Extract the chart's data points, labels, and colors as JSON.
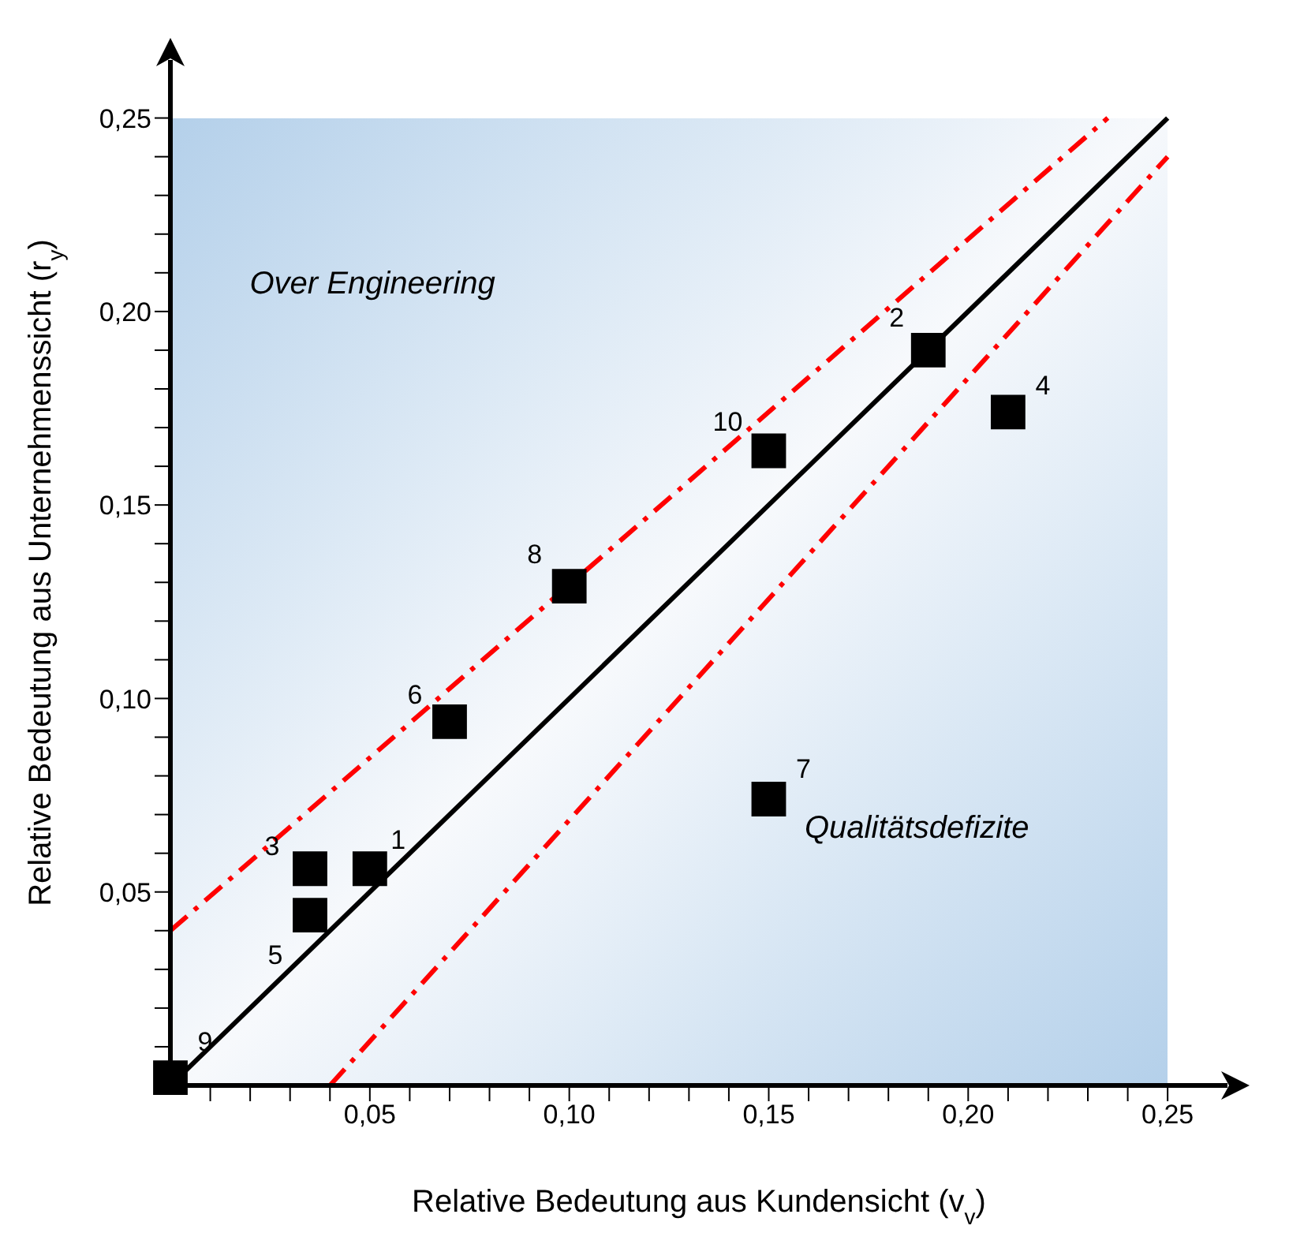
{
  "chart_data": {
    "type": "scatter",
    "xlabel": "Relative Bedeutung aus Kundensicht (v$_{v}$)",
    "ylabel": "Relative Bedeutung aus Unternehmenssicht (r$_{y}$)",
    "annotations": [
      "Over Engineering",
      "Qualitätsdefizite",
      {
        "text": "1",
        "x": 0.05,
        "y": 0.056
      },
      {
        "text": "2",
        "x": 0.19,
        "y": 0.19
      },
      {
        "text": "3",
        "x": 0.035,
        "y": 0.056
      },
      {
        "text": "4",
        "x": 0.21,
        "y": 0.174
      },
      {
        "text": "5",
        "x": 0.035,
        "y": 0.044
      },
      {
        "text": "6",
        "x": 0.07,
        "y": 0.094
      },
      {
        "text": "7",
        "x": 0.15,
        "y": 0.074
      },
      {
        "text": "8",
        "x": 0.1,
        "y": 0.129
      },
      {
        "text": "9",
        "x": 0,
        "y": 0.002
      },
      {
        "text": "10",
        "x": 0.15,
        "y": 0.164
      }
    ],
    "xlim": [
      0,
      0.265
    ],
    "ylim": [
      0,
      0.265
    ],
    "xticks": [
      {
        "value": 0.01,
        "label": null
      },
      {
        "value": 0.02,
        "label": null
      },
      {
        "value": 0.03,
        "label": null
      },
      {
        "value": 0.04,
        "label": null
      },
      {
        "value": 0.05,
        "label": "0,05"
      },
      {
        "value": 0.06,
        "label": null
      },
      {
        "value": 0.07,
        "label": null
      },
      {
        "value": 0.08,
        "label": null
      },
      {
        "value": 0.09,
        "label": null
      },
      {
        "value": 0.1,
        "label": "0,10"
      },
      {
        "value": 0.11,
        "label": null
      },
      {
        "value": 0.12,
        "label": null
      },
      {
        "value": 0.13,
        "label": null
      },
      {
        "value": 0.14,
        "label": null
      },
      {
        "value": 0.15,
        "label": "0,15"
      },
      {
        "value": 0.16,
        "label": null
      },
      {
        "value": 0.17,
        "label": null
      },
      {
        "value": 0.18,
        "label": null
      },
      {
        "value": 0.19,
        "label": null
      },
      {
        "value": 0.2,
        "label": "0,20"
      },
      {
        "value": 0.21,
        "label": null
      },
      {
        "value": 0.22,
        "label": null
      },
      {
        "value": 0.23,
        "label": null
      },
      {
        "value": 0.24,
        "label": null
      },
      {
        "value": 0.25,
        "label": "0,25"
      }
    ],
    "yticks": [
      {
        "value": 0.01,
        "label": null
      },
      {
        "value": 0.02,
        "label": null
      },
      {
        "value": 0.03,
        "label": null
      },
      {
        "value": 0.04,
        "label": null
      },
      {
        "value": 0.05,
        "label": "0,05"
      },
      {
        "value": 0.06,
        "label": null
      },
      {
        "value": 0.07,
        "label": null
      },
      {
        "value": 0.08,
        "label": null
      },
      {
        "value": 0.09,
        "label": null
      },
      {
        "value": 0.1,
        "label": "0,10"
      },
      {
        "value": 0.11,
        "label": null
      },
      {
        "value": 0.12,
        "label": null
      },
      {
        "value": 0.13,
        "label": null
      },
      {
        "value": 0.14,
        "label": null
      },
      {
        "value": 0.15,
        "label": "0,15"
      },
      {
        "value": 0.16,
        "label": null
      },
      {
        "value": 0.17,
        "label": null
      },
      {
        "value": 0.18,
        "label": null
      },
      {
        "value": 0.19,
        "label": null
      },
      {
        "value": 0.2,
        "label": "0,20"
      },
      {
        "value": 0.21,
        "label": null
      },
      {
        "value": 0.22,
        "label": null
      },
      {
        "value": 0.23,
        "label": null
      },
      {
        "value": 0.24,
        "label": null
      },
      {
        "value": 0.25,
        "label": "0,25"
      }
    ],
    "grid": false,
    "series": [
      {
        "type": "scatter",
        "color": "#000000",
        "marker": "square",
        "x": [
          0.05,
          0.19,
          0.035,
          0.21,
          0.035,
          0.07,
          0.15,
          0.1,
          0,
          0.15
        ],
        "values": [
          0.056,
          0.19,
          0.056,
          0.174,
          0.044,
          0.094,
          0.074,
          0.129,
          0.002,
          0.164
        ]
      },
      {
        "type": "line",
        "color": "#000000",
        "line_style": "solid",
        "marker": "none",
        "x": [
          0,
          0.25
        ],
        "values": [
          0,
          0.25
        ]
      },
      {
        "type": "line",
        "color": "#ff0000",
        "line_style": "dashed",
        "marker": "none",
        "x": [
          0,
          0.235
        ],
        "values": [
          0.04,
          0.25
        ]
      },
      {
        "type": "line",
        "color": "#ff0000",
        "line_style": "dashed",
        "marker": "none",
        "x": [
          0.04,
          0.25
        ],
        "values": [
          0,
          0.24
        ]
      }
    ]
  }
}
